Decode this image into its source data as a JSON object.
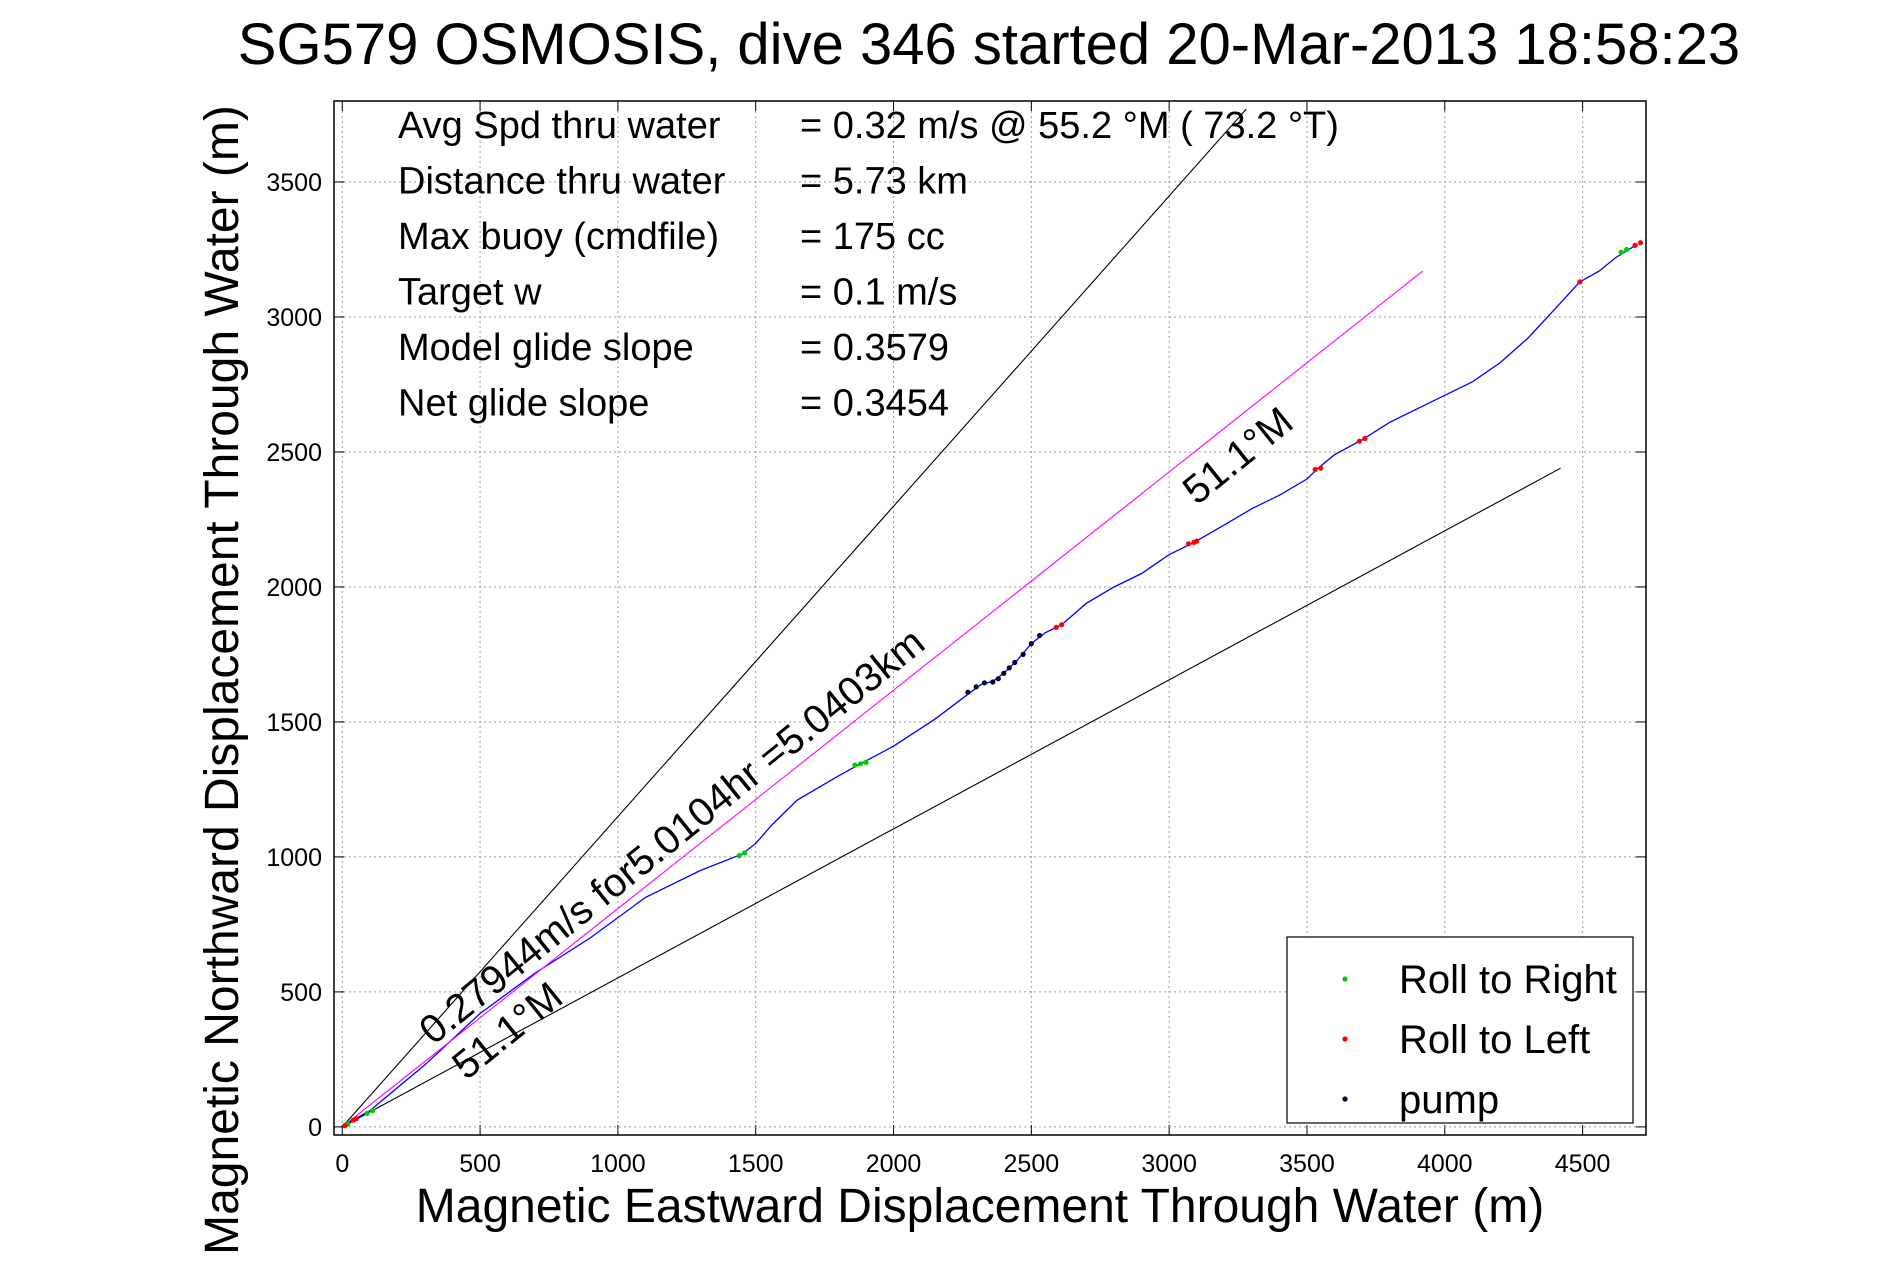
{
  "chart_data": {
    "type": "line",
    "title": "SG579 OSMOSIS, dive 346 started 20-Mar-2013 18:58:23",
    "xlabel": "Magnetic Eastward Displacement Through Water (m)",
    "ylabel": "Magnetic Northward Displacement Through Water (m)",
    "xlim": [
      -30,
      4730
    ],
    "ylim": [
      -30,
      3800
    ],
    "xticks": [
      0,
      500,
      1000,
      1500,
      2000,
      2500,
      3000,
      3500,
      4000,
      4500
    ],
    "yticks": [
      0,
      500,
      1000,
      1500,
      2000,
      2500,
      3000,
      3500
    ],
    "grid": true,
    "info_lines": [
      {
        "label": "Avg Spd thru water",
        "value": "=  0.32 m/s @  55.2 °M ( 73.2 °T)"
      },
      {
        "label": "Distance thru water",
        "value": "=  5.73 km"
      },
      {
        "label": "Max buoy (cmdfile)",
        "value": "= 175 cc"
      },
      {
        "label": "Target w",
        "value": "= 0.1 m/s"
      },
      {
        "label": "Model glide slope",
        "value": "= 0.3579"
      },
      {
        "label": "Net glide slope",
        "value": "= 0.3454"
      }
    ],
    "series": [
      {
        "name": "",
        "color": "#0000ff",
        "x": [
          0,
          30,
          100,
          300,
          500,
          700,
          900,
          1100,
          1300,
          1450,
          1500,
          1560,
          1650,
          1800,
          1880,
          2000,
          2150,
          2280,
          2320,
          2360,
          2400,
          2450,
          2500,
          2550,
          2610,
          2700,
          2800,
          2900,
          3000,
          3090,
          3200,
          3300,
          3400,
          3500,
          3540,
          3600,
          3700,
          3800,
          3900,
          4000,
          4100,
          4200,
          4300,
          4400,
          4490,
          4560,
          4620,
          4700
        ],
        "y": [
          0,
          20,
          60,
          230,
          420,
          570,
          700,
          850,
          950,
          1010,
          1050,
          1120,
          1210,
          1300,
          1345,
          1410,
          1510,
          1610,
          1640,
          1650,
          1680,
          1730,
          1790,
          1830,
          1860,
          1940,
          2000,
          2050,
          2120,
          2165,
          2230,
          2290,
          2340,
          2400,
          2440,
          2490,
          2545,
          2610,
          2660,
          2710,
          2760,
          2830,
          2920,
          3030,
          3130,
          3170,
          3220,
          3270
        ]
      },
      {
        "name": "",
        "color": "#ff00ff",
        "x": [
          0,
          3920
        ],
        "y": [
          0,
          3170
        ]
      },
      {
        "name": "",
        "color": "#000000",
        "x": [
          0,
          3280
        ],
        "y": [
          0,
          3770
        ]
      },
      {
        "name": "",
        "color": "#000000",
        "x": [
          0,
          4420
        ],
        "y": [
          0,
          2440
        ]
      }
    ],
    "markers": [
      {
        "name": "Roll to Right",
        "color": "#00cc00",
        "x": [
          20,
          90,
          110,
          1440,
          1460,
          1860,
          1880,
          1900,
          4640,
          4660
        ],
        "y": [
          10,
          50,
          60,
          1005,
          1015,
          1340,
          1345,
          1350,
          3240,
          3250
        ]
      },
      {
        "name": "Roll to Left",
        "color": "#ff0000",
        "x": [
          10,
          40,
          50,
          2590,
          2610,
          3070,
          3090,
          3100,
          3530,
          3550,
          3690,
          3710,
          4490,
          4690,
          4710
        ],
        "y": [
          5,
          25,
          30,
          1850,
          1860,
          2160,
          2165,
          2170,
          2435,
          2440,
          2540,
          2550,
          3130,
          3265,
          3275
        ]
      },
      {
        "name": "pump",
        "color": "#000033",
        "x": [
          2270,
          2300,
          2330,
          2360,
          2380,
          2400,
          2420,
          2440,
          2470,
          2500,
          2530
        ],
        "y": [
          1610,
          1630,
          1645,
          1648,
          1660,
          1680,
          1700,
          1720,
          1750,
          1790,
          1820
        ]
      }
    ],
    "annotations": [
      {
        "text": "0.27944m/s for5.0104hr =5.0403km",
        "x": 330,
        "y": 300,
        "angle": -38.9
      },
      {
        "text": "51.1°M",
        "x": 450,
        "y": 170,
        "angle": -38.9
      },
      {
        "text": "51.1°M",
        "x": 3100,
        "y": 2300,
        "angle": -38.9
      }
    ],
    "legend": {
      "placement": "bottom-right",
      "entries": [
        "Roll to Right",
        "Roll to Left",
        "pump"
      ]
    }
  }
}
